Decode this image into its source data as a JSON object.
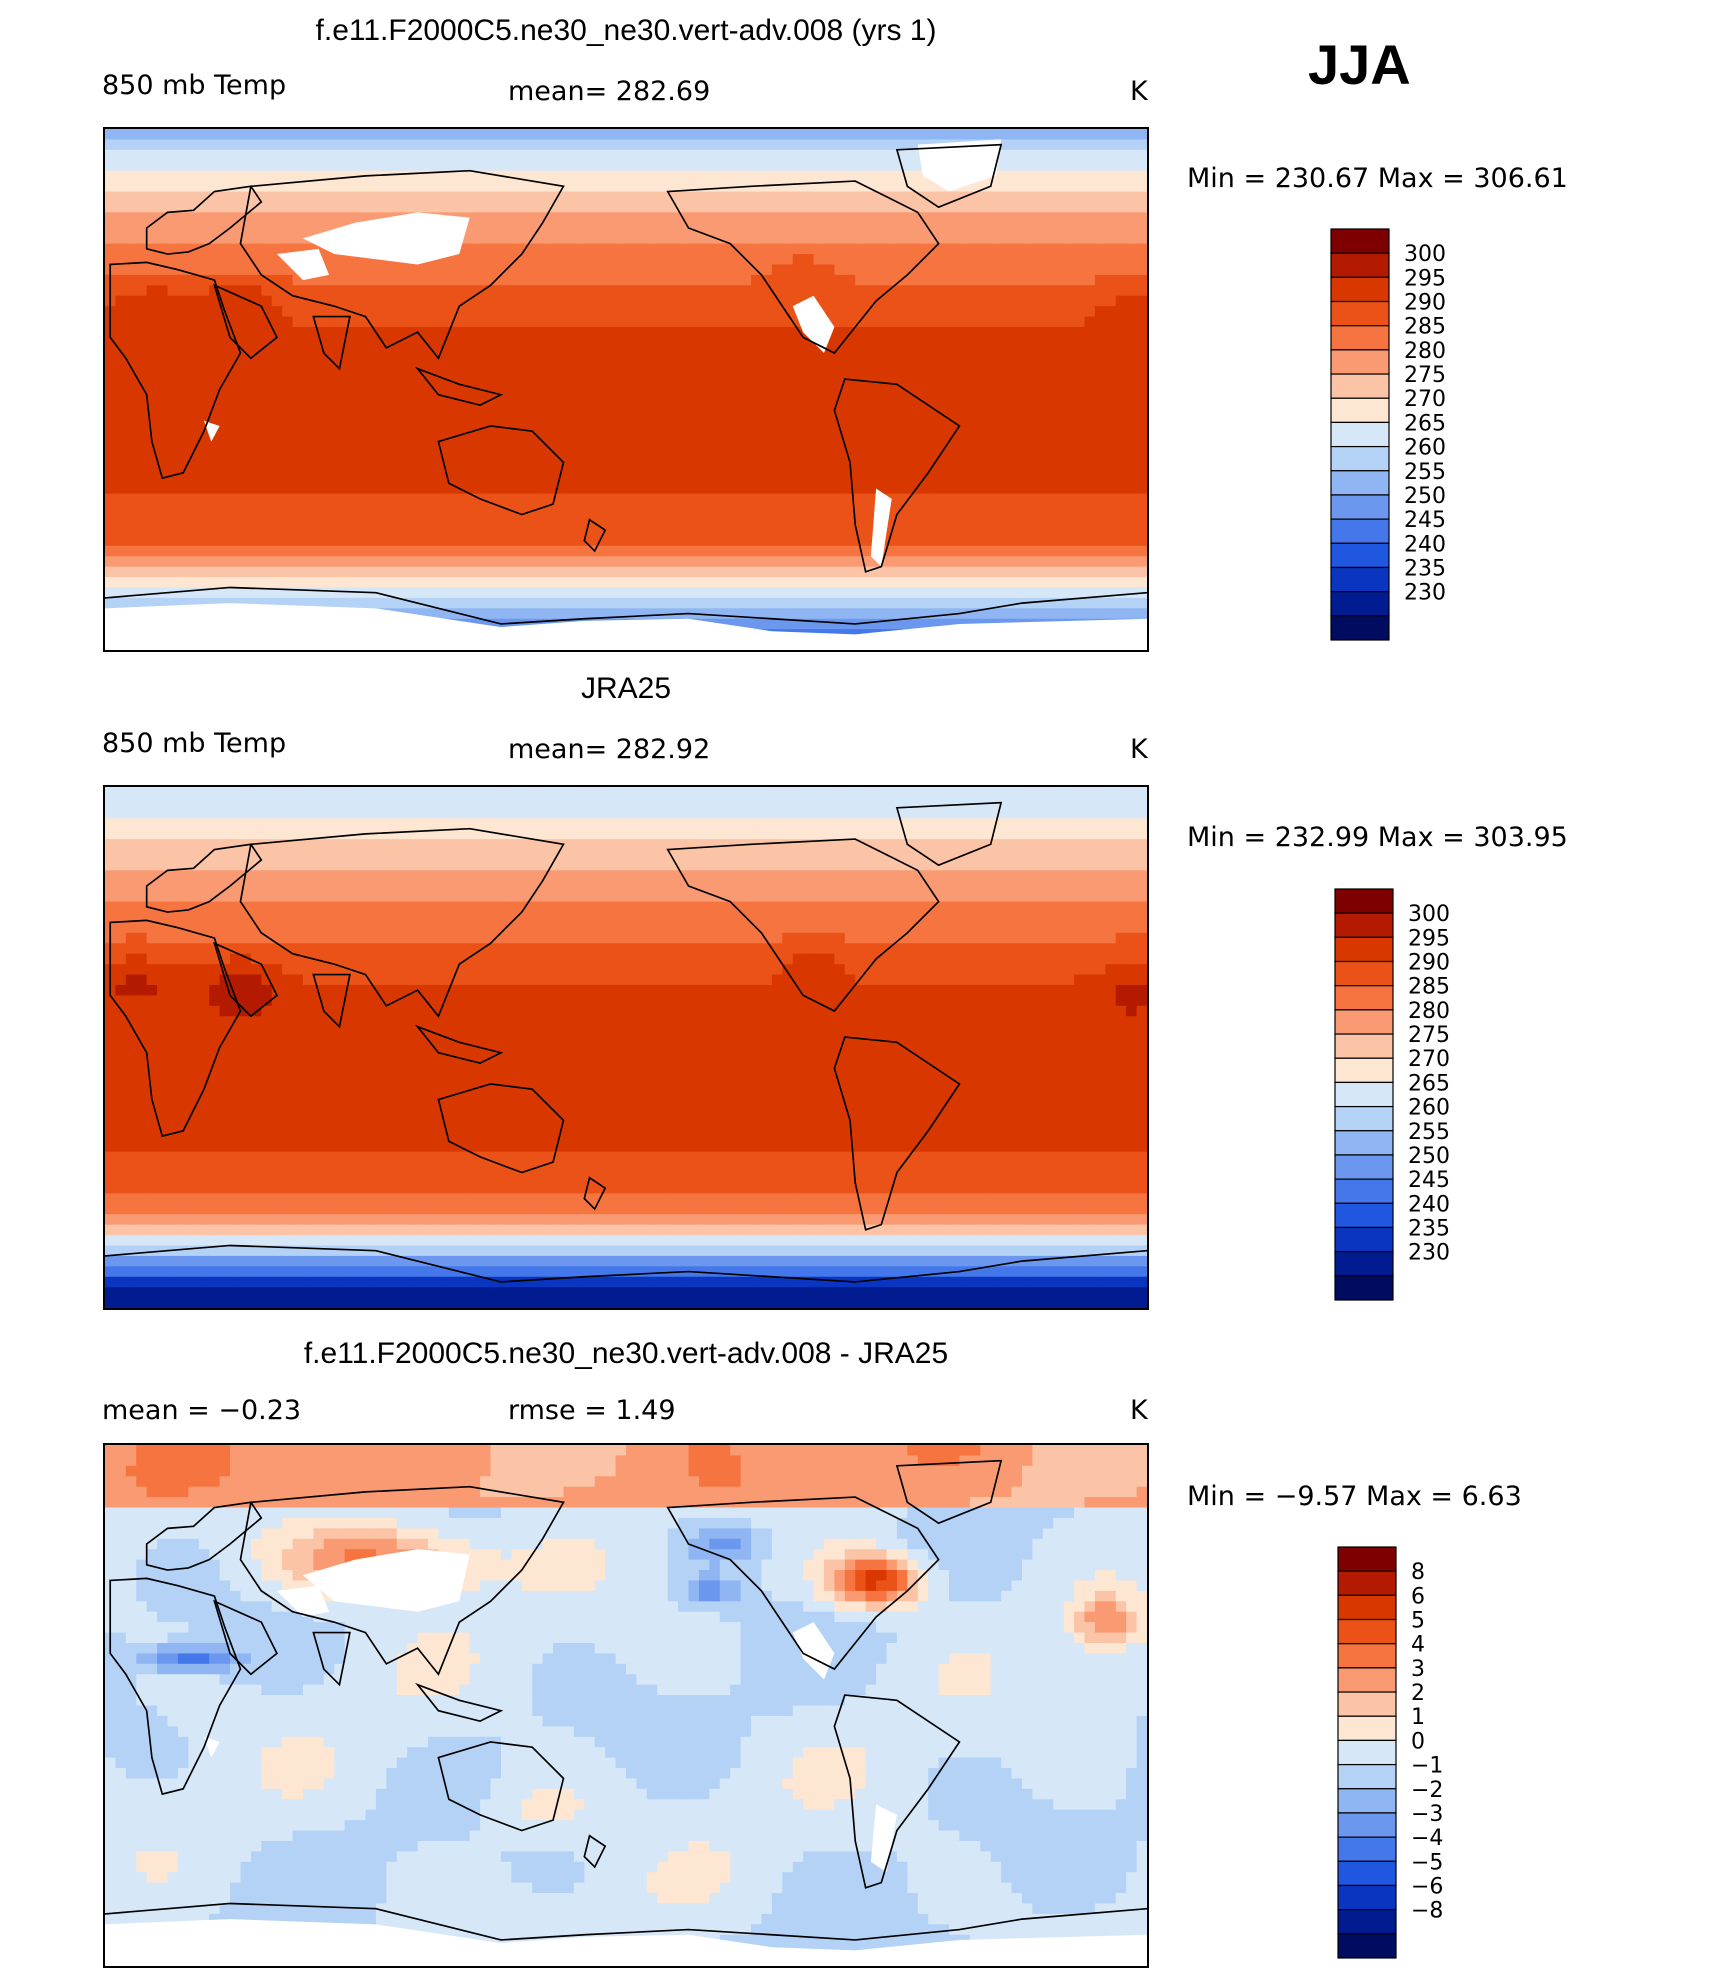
{
  "season": "JJA",
  "panels": [
    {
      "title": "f.e11.F2000C5.ne30_ne30.vert-adv.008 (yrs 1)",
      "left_label": "850 mb Temp",
      "center_label": "mean=  282.69",
      "units": "K",
      "stats": "Min  =  230.67  Max  =  306.61",
      "colorbar_ticks": [
        "300",
        "295",
        "290",
        "285",
        "280",
        "275",
        "270",
        "265",
        "260",
        "255",
        "250",
        "245",
        "240",
        "235",
        "230"
      ],
      "colors": [
        "#7f0000",
        "#b31a00",
        "#d83800",
        "#ea5218",
        "#f57440",
        "#f99a72",
        "#fcc4a6",
        "#fde6d2",
        "#d6e7f8",
        "#b4d2f6",
        "#8fb6f2",
        "#6b98ee",
        "#4478ea",
        "#1f57e0",
        "#0a35c0",
        "#001c90",
        "#000c60"
      ],
      "field": "model"
    },
    {
      "title": "JRA25",
      "left_label": "850 mb Temp",
      "center_label": "mean=  282.92",
      "units": "K",
      "stats": "Min  =  232.99  Max  =  303.95",
      "colorbar_ticks": [
        "300",
        "295",
        "290",
        "285",
        "280",
        "275",
        "270",
        "265",
        "260",
        "255",
        "250",
        "245",
        "240",
        "235",
        "230"
      ],
      "colors": [
        "#7f0000",
        "#b31a00",
        "#d83800",
        "#ea5218",
        "#f57440",
        "#f99a72",
        "#fcc4a6",
        "#fde6d2",
        "#d6e7f8",
        "#b4d2f6",
        "#8fb6f2",
        "#6b98ee",
        "#4478ea",
        "#1f57e0",
        "#0a35c0",
        "#001c90",
        "#000c60"
      ],
      "field": "obs"
    },
    {
      "title": "f.e11.F2000C5.ne30_ne30.vert-adv.008 - JRA25",
      "left_label": "mean  =    −0.23",
      "center_label": "rmse  =     1.49",
      "units": "K",
      "stats": "Min  =    −9.57  Max  =     6.63",
      "colorbar_ticks": [
        "8",
        "6",
        "5",
        "4",
        "3",
        "2",
        "1",
        "0",
        "−1",
        "−2",
        "−3",
        "−4",
        "−5",
        "−6",
        "−8"
      ],
      "colors": [
        "#7f0000",
        "#b31a00",
        "#d83800",
        "#ea5218",
        "#f57440",
        "#f99a72",
        "#fcc4a6",
        "#fde6d2",
        "#d6e7f8",
        "#b4d2f6",
        "#8fb6f2",
        "#6b98ee",
        "#4478ea",
        "#1f57e0",
        "#0a35c0",
        "#001c90",
        "#000c60"
      ],
      "field": "diff"
    }
  ]
}
